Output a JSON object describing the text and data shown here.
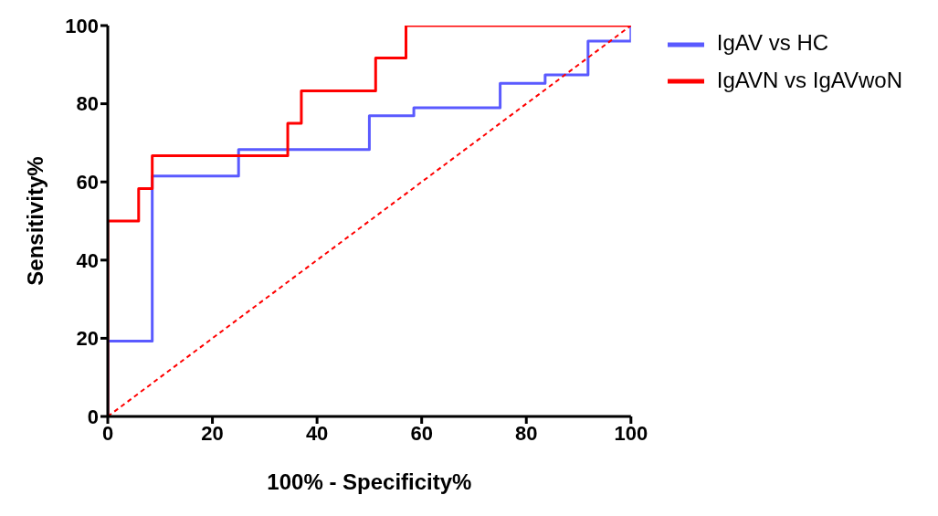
{
  "chart_data": {
    "type": "step",
    "xlabel": "100% - Specificity%",
    "ylabel": "Sensitivity%",
    "xlim": [
      0,
      100
    ],
    "ylim": [
      0,
      100
    ],
    "xticks": [
      0,
      20,
      40,
      60,
      80,
      100
    ],
    "yticks": [
      0,
      20,
      40,
      60,
      80,
      100
    ],
    "grid": false,
    "legend": "top right",
    "marker": "none",
    "series": [
      {
        "name": "IgAV vs HC",
        "color": "#5a5aff",
        "x": [
          0,
          0,
          8.5,
          25,
          50,
          58.5,
          75,
          83.6,
          91.8,
          100
        ],
        "values": [
          0,
          19.3,
          61.5,
          68.3,
          76.9,
          79,
          85.2,
          87.4,
          96,
          100
        ]
      },
      {
        "name": "IgAVN vs IgAVwoN",
        "color": "#ff0000",
        "x": [
          0,
          0,
          5.9,
          8.5,
          34.4,
          37,
          51.2,
          57,
          100
        ],
        "values": [
          0,
          50,
          58.3,
          66.7,
          75,
          83.3,
          91.7,
          100,
          100
        ]
      },
      {
        "type": "line",
        "color": "#ff0000",
        "line_style": "dashed",
        "x": [
          0,
          100
        ],
        "values": [
          0,
          100
        ]
      }
    ]
  }
}
